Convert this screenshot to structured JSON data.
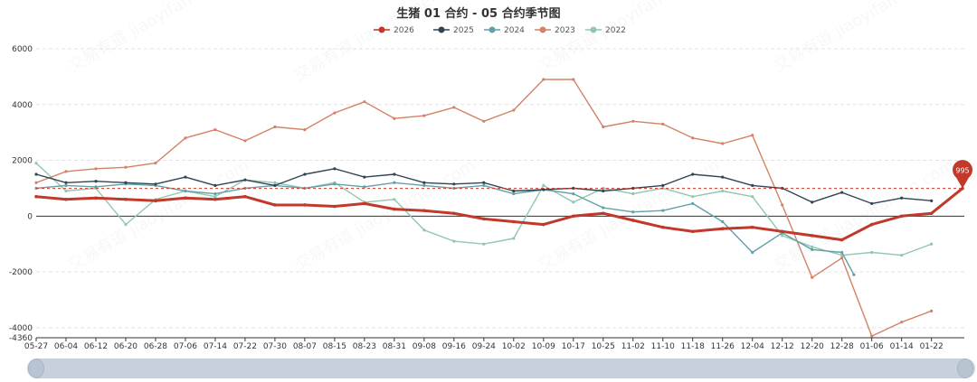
{
  "chart_data": {
    "type": "line",
    "title": "生猪 01 合约 - 05 合约季节图",
    "x_ticks": [
      "05-27",
      "06-04",
      "06-12",
      "06-20",
      "06-28",
      "07-06",
      "07-14",
      "07-22",
      "07-30",
      "08-07",
      "08-15",
      "08-23",
      "08-31",
      "09-08",
      "09-16",
      "09-24",
      "10-02",
      "10-09",
      "10-17",
      "10-25",
      "11-02",
      "11-10",
      "11-18",
      "11-26",
      "12-04",
      "12-12",
      "12-20",
      "12-28",
      "01-06",
      "01-14",
      "01-22"
    ],
    "ylim": [
      -4360,
      6000
    ],
    "y_ticks": [
      -4360,
      -4000,
      -2000,
      0,
      2000,
      4000,
      6000
    ],
    "y_tick_labels": [
      "-4360",
      "-4000",
      "-2000",
      "0",
      "2000",
      "4000",
      "6000"
    ],
    "legend_position": "top-center",
    "grid": true,
    "markline": {
      "value": 995,
      "label": "995"
    },
    "series": [
      {
        "name": "2026",
        "color": "#c0392b",
        "x": [
          "05-27",
          "06-04",
          "06-12",
          "06-20",
          "06-28",
          "07-06",
          "07-14",
          "07-22",
          "07-30",
          "08-07",
          "08-15",
          "08-23",
          "08-31",
          "09-08",
          "09-16",
          "09-24",
          "10-02",
          "10-09",
          "10-17",
          "10-25",
          "11-02",
          "11-10",
          "11-18",
          "11-26",
          "12-04",
          "12-12",
          "12-20",
          "12-28",
          "01-06",
          "01-14",
          "01-22",
          "01-28"
        ],
        "values": [
          700,
          600,
          650,
          600,
          550,
          650,
          600,
          700,
          400,
          400,
          350,
          450,
          250,
          200,
          100,
          -100,
          -200,
          -300,
          0,
          100,
          -150,
          -400,
          -550,
          -450,
          -400,
          -550,
          -700,
          -850,
          -300,
          0,
          100,
          995
        ]
      },
      {
        "name": "2025",
        "color": "#2f4554",
        "x": [
          "05-27",
          "06-04",
          "06-12",
          "06-20",
          "06-28",
          "07-06",
          "07-14",
          "07-22",
          "07-30",
          "08-07",
          "08-15",
          "08-23",
          "08-31",
          "09-08",
          "09-16",
          "09-24",
          "10-02",
          "10-09",
          "10-17",
          "10-25",
          "11-02",
          "11-10",
          "11-18",
          "11-26",
          "12-04",
          "12-12",
          "12-20",
          "12-28",
          "01-06",
          "01-14",
          "01-22"
        ],
        "values": [
          1500,
          1200,
          1250,
          1200,
          1150,
          1400,
          1100,
          1300,
          1100,
          1500,
          1700,
          1400,
          1500,
          1200,
          1150,
          1200,
          900,
          950,
          1000,
          900,
          1000,
          1100,
          1500,
          1400,
          1100,
          1000,
          500,
          850,
          450,
          650,
          550
        ]
      },
      {
        "name": "2024",
        "color": "#61a0a8",
        "x": [
          "05-27",
          "06-04",
          "06-12",
          "06-20",
          "06-28",
          "07-06",
          "07-14",
          "07-22",
          "07-30",
          "08-07",
          "08-15",
          "08-23",
          "08-31",
          "09-08",
          "09-16",
          "09-24",
          "10-02",
          "10-09",
          "10-17",
          "10-25",
          "11-02",
          "11-10",
          "11-18",
          "11-26",
          "12-04",
          "12-12",
          "12-20",
          "12-28",
          "12-31"
        ],
        "values": [
          1000,
          1100,
          1050,
          1150,
          1100,
          900,
          800,
          1000,
          1100,
          1000,
          1150,
          1050,
          1200,
          1100,
          1000,
          1100,
          800,
          950,
          800,
          300,
          150,
          200,
          450,
          -200,
          -1300,
          -600,
          -1200,
          -1300,
          -2100
        ]
      },
      {
        "name": "2023",
        "color": "#d48265",
        "x": [
          "05-27",
          "06-04",
          "06-12",
          "06-20",
          "06-28",
          "07-06",
          "07-14",
          "07-22",
          "07-30",
          "08-07",
          "08-15",
          "08-23",
          "08-31",
          "09-08",
          "09-16",
          "09-24",
          "10-02",
          "10-09",
          "10-17",
          "10-25",
          "11-02",
          "11-10",
          "11-18",
          "11-26",
          "12-04",
          "12-12",
          "12-20",
          "12-28",
          "01-06",
          "01-14",
          "01-22"
        ],
        "values": [
          1200,
          1600,
          1700,
          1750,
          1900,
          2800,
          3100,
          2700,
          3200,
          3100,
          3700,
          4100,
          3500,
          3600,
          3900,
          3400,
          3800,
          4900,
          4900,
          3200,
          3400,
          3300,
          2800,
          2600,
          2900,
          400,
          -2200,
          -1500,
          -4300,
          -3800,
          -3400
        ]
      },
      {
        "name": "2022",
        "color": "#91c7ae",
        "x": [
          "05-27",
          "06-04",
          "06-12",
          "06-20",
          "06-28",
          "07-06",
          "07-14",
          "07-22",
          "07-30",
          "08-07",
          "08-15",
          "08-23",
          "08-31",
          "09-08",
          "09-16",
          "09-24",
          "10-02",
          "10-09",
          "10-17",
          "10-25",
          "11-02",
          "11-10",
          "11-18",
          "11-26",
          "12-04",
          "12-12",
          "12-20",
          "12-28",
          "01-06",
          "01-14",
          "01-22"
        ],
        "values": [
          1900,
          900,
          1000,
          -300,
          600,
          900,
          700,
          1300,
          1200,
          1000,
          1200,
          500,
          600,
          -500,
          -900,
          -1000,
          -800,
          1100,
          500,
          1000,
          800,
          1000,
          700,
          900,
          700,
          -700,
          -1100,
          -1400,
          -1300,
          -1400,
          -1000
        ]
      }
    ]
  },
  "watermark": "交易有道 jiaoyifamen.com"
}
